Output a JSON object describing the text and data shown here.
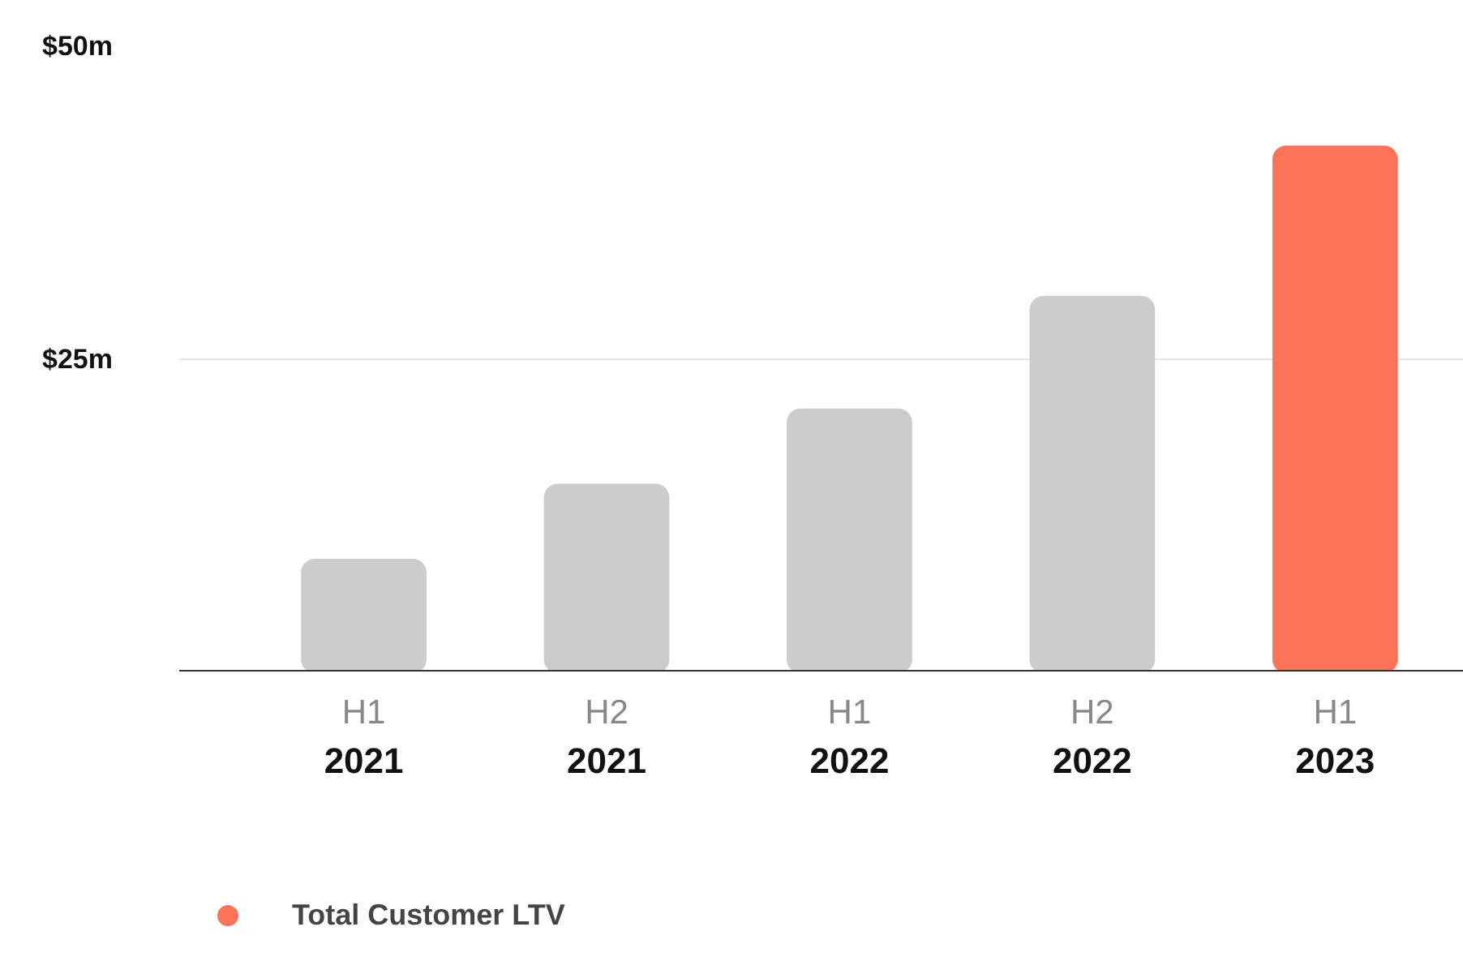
{
  "chart_data": {
    "type": "bar",
    "categories": [
      "H1\n2021",
      "H2\n2021",
      "H1\n2022",
      "H2\n2022",
      "H1\n2023"
    ],
    "series": [
      {
        "name": "Total Customer LTV",
        "color": "#ff7359",
        "colors": [
          "#cccccc",
          "#cccccc",
          "#cccccc",
          "#cccccc",
          "#ff7359"
        ],
        "values": [
          9,
          15,
          21,
          30,
          42
        ]
      }
    ],
    "ylim": [
      0,
      50
    ],
    "yticks": [
      {
        "value": 25,
        "label": "$25m"
      },
      {
        "value": 50,
        "label": "$50m"
      }
    ],
    "grid": "y",
    "legend": "bottom left"
  }
}
